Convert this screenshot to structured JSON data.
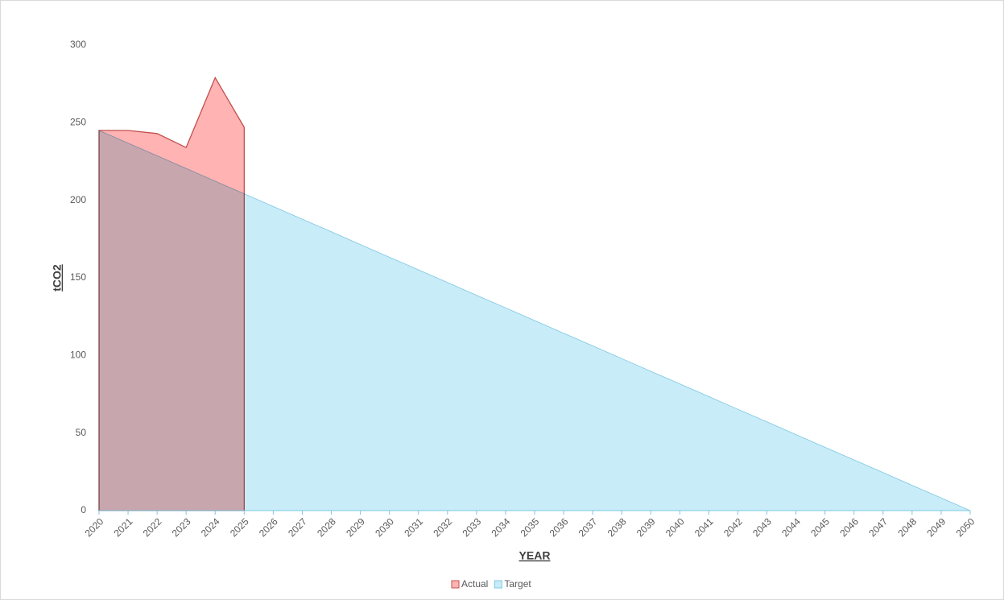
{
  "chart_data": {
    "type": "area",
    "x_label": "YEAR",
    "y_label": "tCO2",
    "categories": [
      "2020",
      "2021",
      "2022",
      "2023",
      "2024",
      "2025",
      "2026",
      "2027",
      "2028",
      "2029",
      "2030",
      "2031",
      "2032",
      "2033",
      "2034",
      "2035",
      "2036",
      "2037",
      "2038",
      "2039",
      "2040",
      "2041",
      "2042",
      "2043",
      "2044",
      "2045",
      "2046",
      "2047",
      "2048",
      "2049",
      "2050"
    ],
    "series": [
      {
        "name": "Actual",
        "color": "#ffb3b3",
        "line_color": "#c0504d",
        "values": [
          245,
          245,
          243,
          234,
          279,
          247,
          null,
          null,
          null,
          null,
          null,
          null,
          null,
          null,
          null,
          null,
          null,
          null,
          null,
          null,
          null,
          null,
          null,
          null,
          null,
          null,
          null,
          null,
          null,
          null,
          null
        ]
      },
      {
        "name": "Target",
        "color": "#c8ecf8",
        "line_color": "#7ec8e3",
        "values": [
          245,
          236.8,
          228.7,
          220.5,
          212.3,
          204.2,
          196,
          187.8,
          179.7,
          171.5,
          163.3,
          155.2,
          147,
          138.8,
          130.7,
          122.5,
          114.3,
          106.2,
          98,
          89.8,
          81.7,
          73.5,
          65.3,
          57.2,
          49,
          40.8,
          32.7,
          24.5,
          16.3,
          8.2,
          0
        ]
      }
    ],
    "ylim": [
      0,
      300
    ],
    "yticks": [
      0,
      50,
      100,
      150,
      200,
      250,
      300
    ],
    "grid": false,
    "legend": "bottom"
  }
}
